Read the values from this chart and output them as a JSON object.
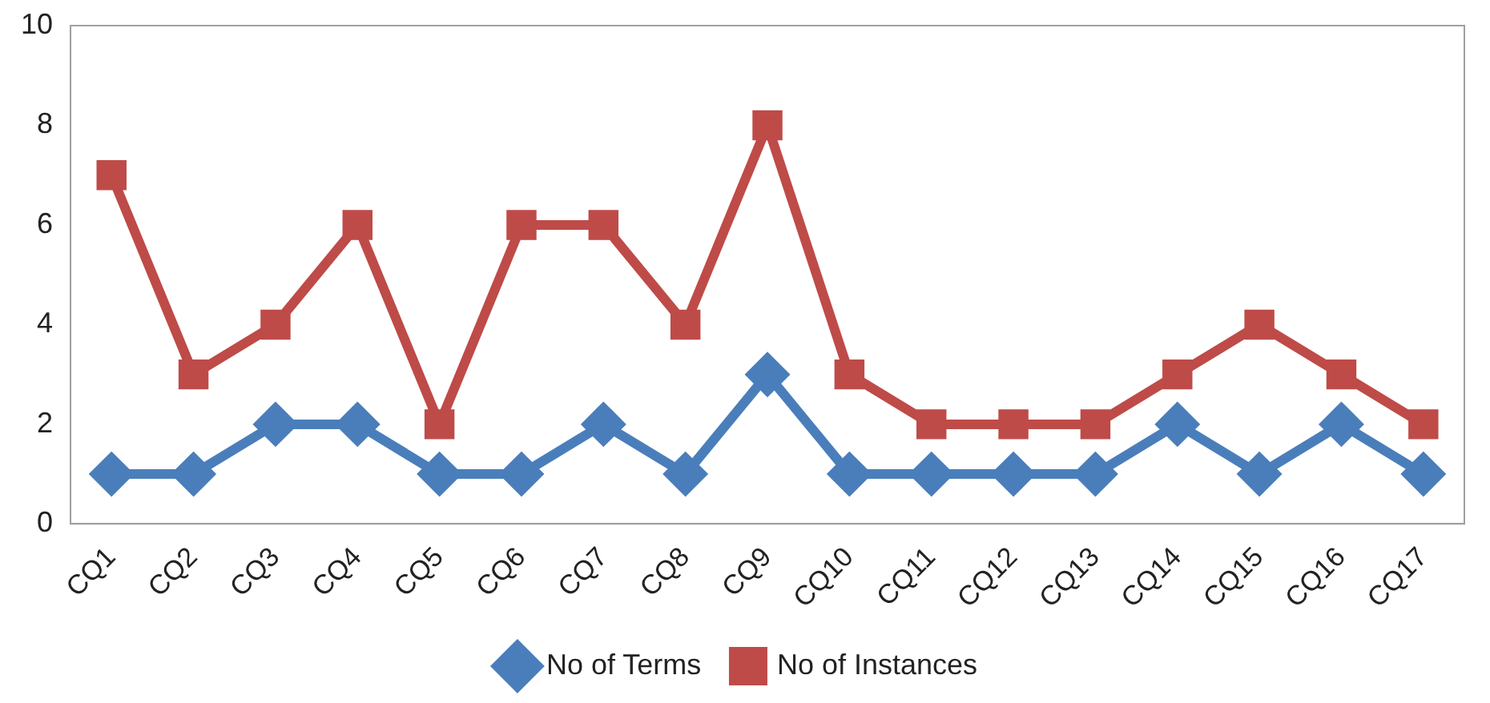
{
  "chart_data": {
    "type": "line",
    "categories": [
      "CQ1",
      "CQ2",
      "CQ3",
      "CQ4",
      "CQ5",
      "CQ6",
      "CQ7",
      "CQ8",
      "CQ9",
      "CQ10",
      "CQ11",
      "CQ12",
      "CQ13",
      "CQ14",
      "CQ15",
      "CQ16",
      "CQ17"
    ],
    "series": [
      {
        "name": "No of Terms",
        "color": "#4a7ebb",
        "marker": "diamond",
        "values": [
          1,
          1,
          2,
          2,
          1,
          1,
          2,
          1,
          3,
          1,
          1,
          1,
          1,
          2,
          1,
          2,
          1
        ]
      },
      {
        "name": "No of Instances",
        "color": "#be4b48",
        "marker": "square",
        "values": [
          7,
          3,
          4,
          6,
          2,
          6,
          6,
          4,
          8,
          3,
          2,
          2,
          2,
          3,
          4,
          3,
          2
        ]
      }
    ],
    "ylim": [
      0,
      10
    ],
    "yticks": [
      0,
      2,
      4,
      6,
      8,
      10
    ],
    "grid": false,
    "legend": "bottom",
    "line_style": "solid"
  }
}
